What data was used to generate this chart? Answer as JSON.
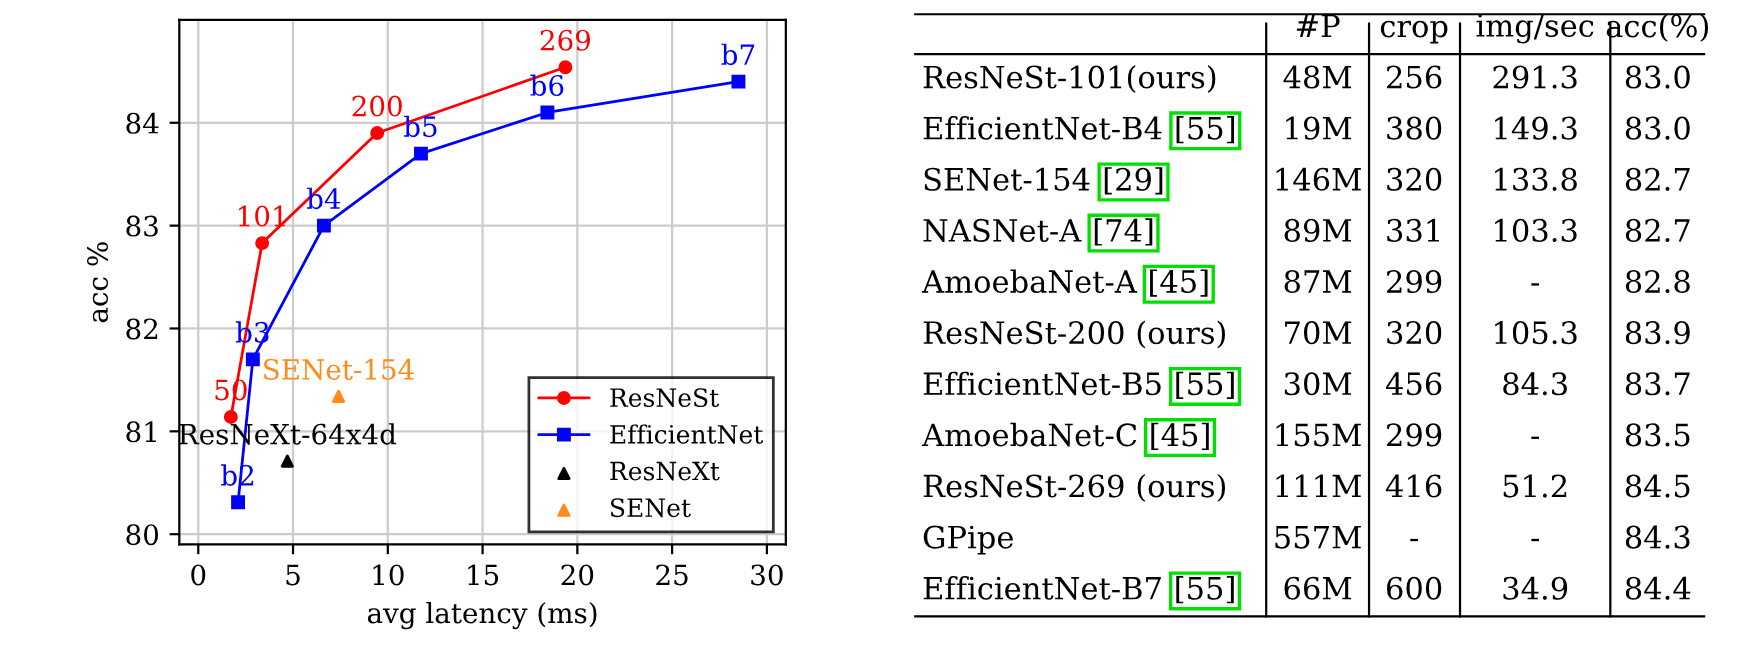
{
  "chart_data": [
    {
      "type": "line",
      "xlabel": "avg latency (ms)",
      "ylabel": "acc %",
      "xlim": [
        -1,
        31
      ],
      "ylim": [
        79.9,
        85
      ],
      "xticks": [
        0,
        5,
        10,
        15,
        20,
        25,
        30
      ],
      "yticks": [
        80,
        81,
        82,
        83,
        84
      ],
      "grid": true,
      "legend": "bottom right",
      "series": [
        {
          "name": "ResNeSt",
          "color": "#ff0000",
          "marker": "circle",
          "x": [
            1.72,
            3.37,
            9.44,
            19.37
          ],
          "values": [
            81.14,
            82.83,
            83.9,
            84.54
          ]
        },
        {
          "name": "EfficientNet",
          "color": "#0000ff",
          "marker": "square",
          "x": [
            2.1,
            2.88,
            6.63,
            11.75,
            18.42,
            28.5
          ],
          "values": [
            80.31,
            81.7,
            83.0,
            83.7,
            84.1,
            84.4
          ]
        },
        {
          "name": "ResNeXt",
          "type": "scatter",
          "color": "#000000",
          "marker": "triangle",
          "x": [
            4.7
          ],
          "values": [
            80.71
          ]
        },
        {
          "name": "SENet",
          "type": "scatter",
          "color": "#ff8c1a",
          "marker": "triangle",
          "x": [
            7.4
          ],
          "values": [
            81.34
          ]
        }
      ],
      "annotations": [
        {
          "text": "50",
          "x": 1.72,
          "y": 81.14
        },
        {
          "text": "101",
          "x": 3.37,
          "y": 82.83
        },
        {
          "text": "200",
          "x": 9.44,
          "y": 83.9
        },
        {
          "text": "269",
          "x": 19.37,
          "y": 84.54
        },
        {
          "text": "b2",
          "x": 2.1,
          "y": 80.31
        },
        {
          "text": "b3",
          "x": 2.88,
          "y": 81.7
        },
        {
          "text": "b4",
          "x": 6.63,
          "y": 83.0
        },
        {
          "text": "b5",
          "x": 11.75,
          "y": 83.7
        },
        {
          "text": "b6",
          "x": 18.42,
          "y": 84.1
        },
        {
          "text": "b7",
          "x": 28.5,
          "y": 84.4
        },
        {
          "text": "ResNeXt-64x4d",
          "x": 4.7,
          "y": 80.71
        },
        {
          "text": "SENet-154",
          "x": 7.4,
          "y": 81.34
        }
      ]
    },
    {
      "type": "other",
      "categories": [
        null,
        "#P",
        "crop",
        "img/sec",
        "acc(%)"
      ],
      "y_categories": [
        "ResNeSt-101(ours)",
        "EfficientNet-B4",
        "SENet-154",
        "NASNet-A",
        "AmoebaNet-A",
        "ResNeSt-200 (ours)",
        "EfficientNet-B5",
        "AmoebaNet-C",
        "ResNeSt-269 (ours)",
        "GPipe",
        "EfficientNet-B7"
      ],
      "cell_labels": [
        [
          null,
          "48M",
          "256",
          "291.3",
          "83.0"
        ],
        [
          "[55]",
          "19M",
          "380",
          "149.3",
          "83.0"
        ],
        [
          "[29]",
          "146M",
          "320",
          "133.8",
          "82.7"
        ],
        [
          "[74]",
          "89M",
          "331",
          "103.3",
          "82.7"
        ],
        [
          "[45]",
          "87M",
          "299",
          "-",
          "82.8"
        ],
        [
          null,
          "70M",
          "320",
          "105.3",
          "83.9"
        ],
        [
          "[55]",
          "30M",
          "456",
          "84.3",
          "83.7"
        ],
        [
          "[45]",
          "155M",
          "299",
          "-",
          "83.5"
        ],
        [
          null,
          "111M",
          "416",
          "51.2",
          "84.5"
        ],
        [
          null,
          "557M",
          "-",
          "-",
          "84.3"
        ],
        [
          "[55]",
          "66M",
          "600",
          "34.9",
          "84.4"
        ]
      ]
    }
  ]
}
